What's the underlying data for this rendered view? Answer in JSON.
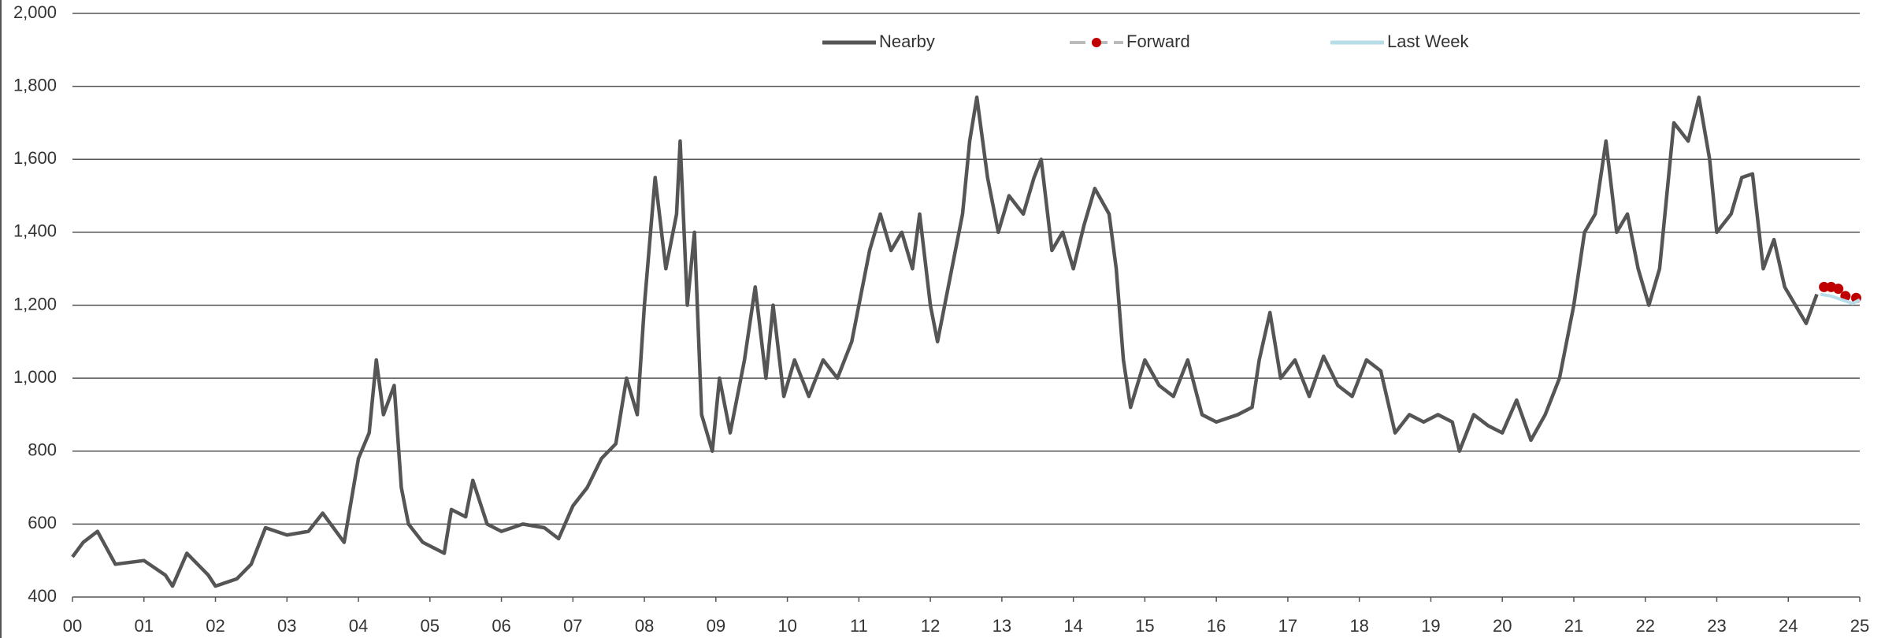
{
  "chart_data": {
    "type": "line",
    "xlim": [
      0,
      25
    ],
    "ylim": [
      400,
      2000
    ],
    "xticks": [
      {
        "value": 0,
        "label": "00"
      },
      {
        "value": 1,
        "label": "01"
      },
      {
        "value": 2,
        "label": "02"
      },
      {
        "value": 3,
        "label": "03"
      },
      {
        "value": 4,
        "label": "04"
      },
      {
        "value": 5,
        "label": "05"
      },
      {
        "value": 6,
        "label": "06"
      },
      {
        "value": 7,
        "label": "07"
      },
      {
        "value": 8,
        "label": "08"
      },
      {
        "value": 9,
        "label": "09"
      },
      10,
      11,
      12,
      13,
      14,
      15,
      16,
      17,
      18,
      19,
      20,
      21,
      22,
      23,
      24,
      25
    ],
    "yticks": [
      400,
      600,
      800,
      {
        "value": 1000,
        "label": "1,000"
      },
      {
        "value": 1200,
        "label": "1,200"
      },
      {
        "value": 1400,
        "label": "1,400"
      },
      {
        "value": 1600,
        "label": "1,600"
      },
      {
        "value": 1800,
        "label": "1,800"
      },
      {
        "value": 2000,
        "label": "2,000"
      }
    ],
    "grid": true,
    "legend": "top",
    "series": [
      {
        "name": "Nearby",
        "color": "#555555",
        "x": [
          0,
          0.15,
          0.35,
          0.6,
          1.0,
          1.3,
          1.4,
          1.6,
          1.9,
          2.0,
          2.3,
          2.5,
          2.7,
          3.0,
          3.3,
          3.5,
          3.8,
          4.0,
          4.15,
          4.25,
          4.35,
          4.5,
          4.6,
          4.7,
          4.9,
          5.0,
          5.2,
          5.3,
          5.5,
          5.6,
          5.8,
          6.0,
          6.3,
          6.6,
          6.8,
          7.0,
          7.2,
          7.4,
          7.6,
          7.75,
          7.9,
          8.0,
          8.15,
          8.3,
          8.45,
          8.5,
          8.6,
          8.7,
          8.8,
          8.95,
          9.05,
          9.2,
          9.4,
          9.55,
          9.7,
          9.8,
          9.95,
          10.1,
          10.3,
          10.5,
          10.7,
          10.9,
          11.0,
          11.15,
          11.3,
          11.45,
          11.6,
          11.75,
          11.85,
          12.0,
          12.1,
          12.3,
          12.45,
          12.55,
          12.65,
          12.8,
          12.95,
          13.1,
          13.3,
          13.45,
          13.55,
          13.7,
          13.85,
          14.0,
          14.15,
          14.3,
          14.5,
          14.6,
          14.7,
          14.8,
          15.0,
          15.2,
          15.4,
          15.6,
          15.8,
          16.0,
          16.3,
          16.5,
          16.6,
          16.75,
          16.9,
          17.1,
          17.3,
          17.5,
          17.7,
          17.9,
          18.1,
          18.3,
          18.5,
          18.7,
          18.9,
          19.1,
          19.3,
          19.4,
          19.6,
          19.8,
          20.0,
          20.2,
          20.4,
          20.6,
          20.8,
          21.0,
          21.15,
          21.3,
          21.45,
          21.6,
          21.75,
          21.9,
          22.05,
          22.2,
          22.4,
          22.6,
          22.75,
          22.9,
          23.0,
          23.2,
          23.35,
          23.5,
          23.65,
          23.8,
          23.95,
          24.1,
          24.25,
          24.4
        ],
        "values": [
          510,
          550,
          580,
          490,
          500,
          460,
          430,
          520,
          460,
          430,
          450,
          490,
          590,
          570,
          580,
          630,
          550,
          780,
          850,
          1050,
          900,
          980,
          700,
          600,
          550,
          540,
          520,
          640,
          620,
          720,
          600,
          580,
          600,
          590,
          560,
          650,
          700,
          780,
          820,
          1000,
          900,
          1200,
          1550,
          1300,
          1450,
          1650,
          1200,
          1400,
          900,
          800,
          1000,
          850,
          1050,
          1250,
          1000,
          1200,
          950,
          1050,
          950,
          1050,
          1000,
          1100,
          1200,
          1350,
          1450,
          1350,
          1400,
          1300,
          1450,
          1200,
          1100,
          1300,
          1450,
          1650,
          1770,
          1550,
          1400,
          1500,
          1450,
          1550,
          1600,
          1350,
          1400,
          1300,
          1420,
          1520,
          1450,
          1300,
          1050,
          920,
          1050,
          980,
          950,
          1050,
          900,
          880,
          900,
          920,
          1050,
          1180,
          1000,
          1050,
          950,
          1060,
          980,
          950,
          1050,
          1020,
          850,
          900,
          880,
          900,
          880,
          800,
          900,
          870,
          850,
          940,
          830,
          900,
          1000,
          1200,
          1400,
          1450,
          1650,
          1400,
          1450,
          1300,
          1200,
          1300,
          1700,
          1650,
          1770,
          1600,
          1400,
          1450,
          1550,
          1560,
          1300,
          1380,
          1250,
          1200,
          1150,
          1230
        ]
      },
      {
        "name": "Forward",
        "color": "#c00000",
        "x": [
          24.5,
          24.6,
          24.7,
          24.8,
          24.95
        ],
        "values": [
          1250,
          1250,
          1245,
          1225,
          1220
        ]
      },
      {
        "name": "Last Week",
        "color": "#b7dde8",
        "x": [
          24.45,
          24.6,
          24.75,
          24.9,
          25.0
        ],
        "values": [
          1230,
          1225,
          1215,
          1205,
          1215
        ]
      }
    ]
  }
}
